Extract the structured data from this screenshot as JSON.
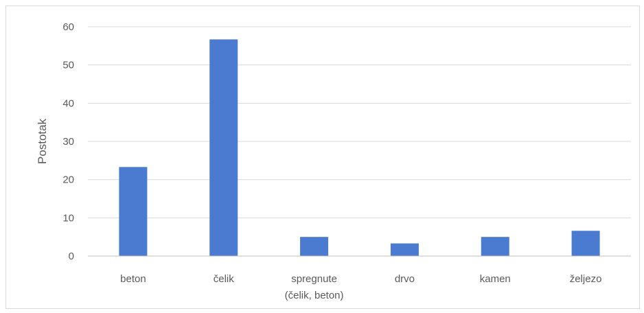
{
  "chart_data": {
    "type": "bar",
    "categories": [
      "beton",
      "čelik",
      [
        "spregnute",
        "(čelik, beton)"
      ],
      "drvo",
      "kamen",
      "željezo"
    ],
    "values": [
      23.3,
      56.7,
      5.0,
      3.3,
      5.0,
      6.6
    ],
    "ylabel": "Postotak",
    "xlabel": "",
    "title": "",
    "ylim": [
      0,
      60
    ],
    "yticks": [
      0,
      10,
      20,
      30,
      40,
      50,
      60
    ],
    "grid": true,
    "legend": "none",
    "bar_color": "#4a7bd0",
    "grid_color": "#d9d9d9",
    "axis_color": "#bfbfbf"
  }
}
